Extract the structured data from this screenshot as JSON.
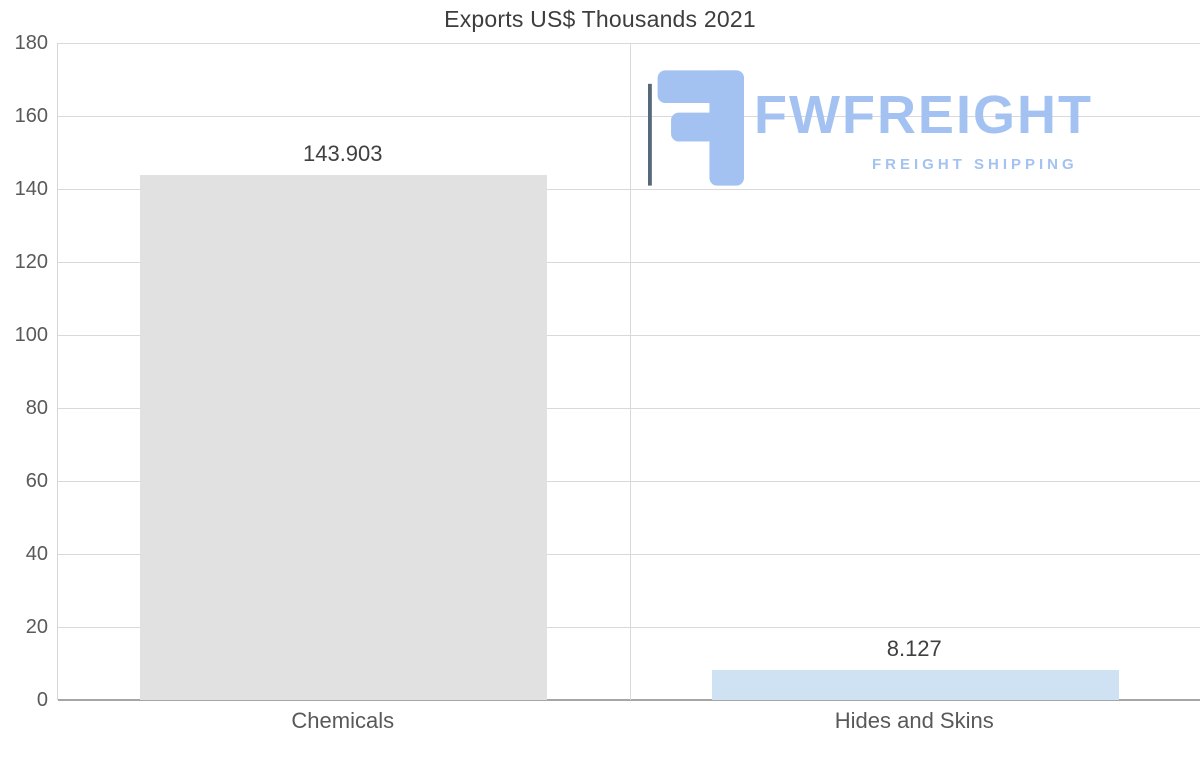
{
  "title": "Exports US$ Thousands 2021",
  "logo": {
    "name": "FWFREIGHT",
    "tagline": "FREIGHT SHIPPING",
    "color": "#a4c2f1"
  },
  "chart_data": {
    "type": "bar",
    "title": "Exports US$ Thousands 2021",
    "categories": [
      "Chemicals",
      "Hides and Skins"
    ],
    "values": [
      143.903,
      8.127
    ],
    "value_labels": [
      "143.903",
      "8.127"
    ],
    "bar_colors": [
      "#e1e1e1",
      "#cfe2f3"
    ],
    "xlabel": "",
    "ylabel": "",
    "ylim": [
      0,
      180
    ],
    "yticks": [
      0,
      20,
      40,
      60,
      80,
      100,
      120,
      140,
      160,
      180
    ],
    "grid": true,
    "legend": "none"
  }
}
